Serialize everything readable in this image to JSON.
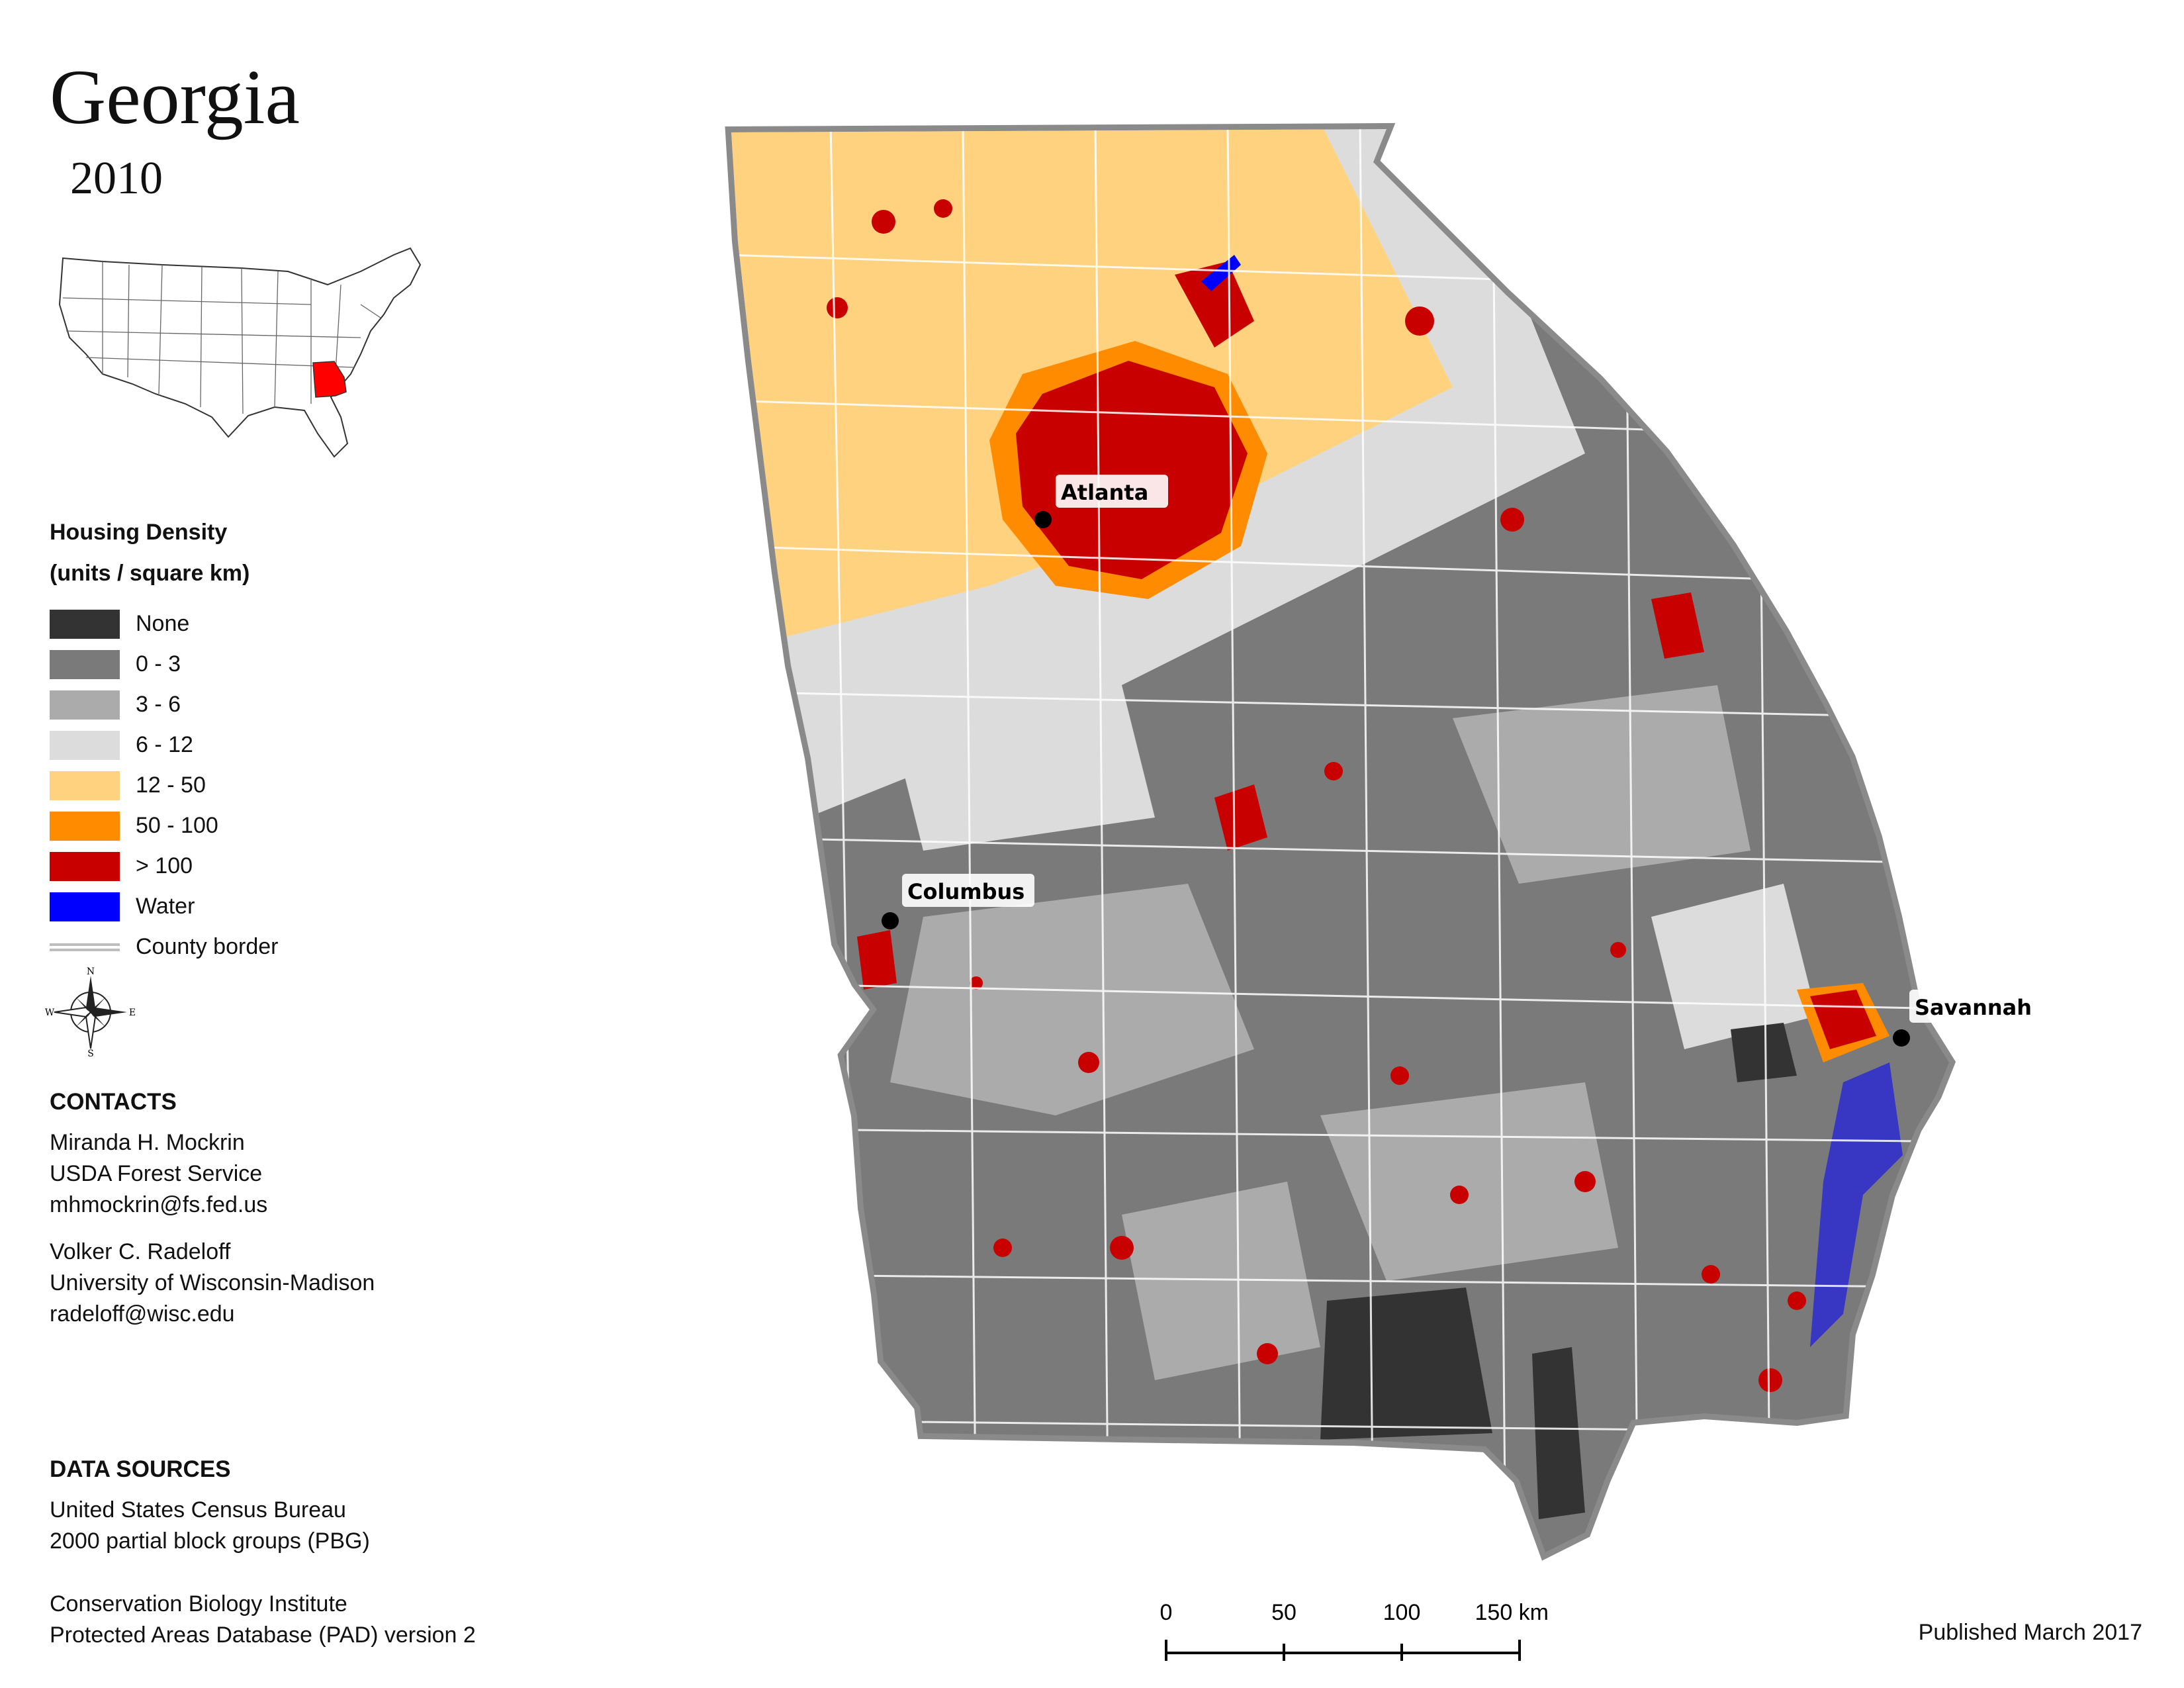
{
  "title": "Georgia",
  "year": "2010",
  "legend": {
    "heading_line1": "Housing Density",
    "heading_line2": "(units / square km)",
    "items": [
      {
        "label": "None",
        "color": "#333333"
      },
      {
        "label": "0 - 3",
        "color": "#7a7a7a"
      },
      {
        "label": "3 - 6",
        "color": "#ababab"
      },
      {
        "label": "6 - 12",
        "color": "#dcdcdc"
      },
      {
        "label": "12 - 50",
        "color": "#ffd280"
      },
      {
        "label": "50 - 100",
        "color": "#ff8c00"
      },
      {
        "label": "> 100",
        "color": "#c80000"
      },
      {
        "label": "Water",
        "color": "#0000ff"
      }
    ],
    "county_border_label": "County border"
  },
  "compass": {
    "n": "N",
    "s": "S",
    "e": "E",
    "w": "W"
  },
  "contacts": {
    "heading": "CONTACTS",
    "person1": {
      "name": "Miranda H. Mockrin",
      "org": "USDA Forest Service",
      "email": "mhmockrin@fs.fed.us"
    },
    "person2": {
      "name": "Volker C. Radeloff",
      "org": "University of Wisconsin-Madison",
      "email": "radeloff@wisc.edu"
    }
  },
  "data_sources": {
    "heading": "DATA SOURCES",
    "line1": "United States Census Bureau",
    "line2": "2000 partial block groups (PBG)",
    "line3": "Conservation Biology Institute",
    "line4": "Protected Areas Database (PAD) version 2"
  },
  "cities": [
    {
      "name": "Atlanta"
    },
    {
      "name": "Columbus"
    },
    {
      "name": "Savannah"
    }
  ],
  "scale": {
    "ticks": [
      "0",
      "50",
      "100",
      "150 km"
    ]
  },
  "published": "Published March 2017",
  "inset_highlight_color": "#ff0000"
}
